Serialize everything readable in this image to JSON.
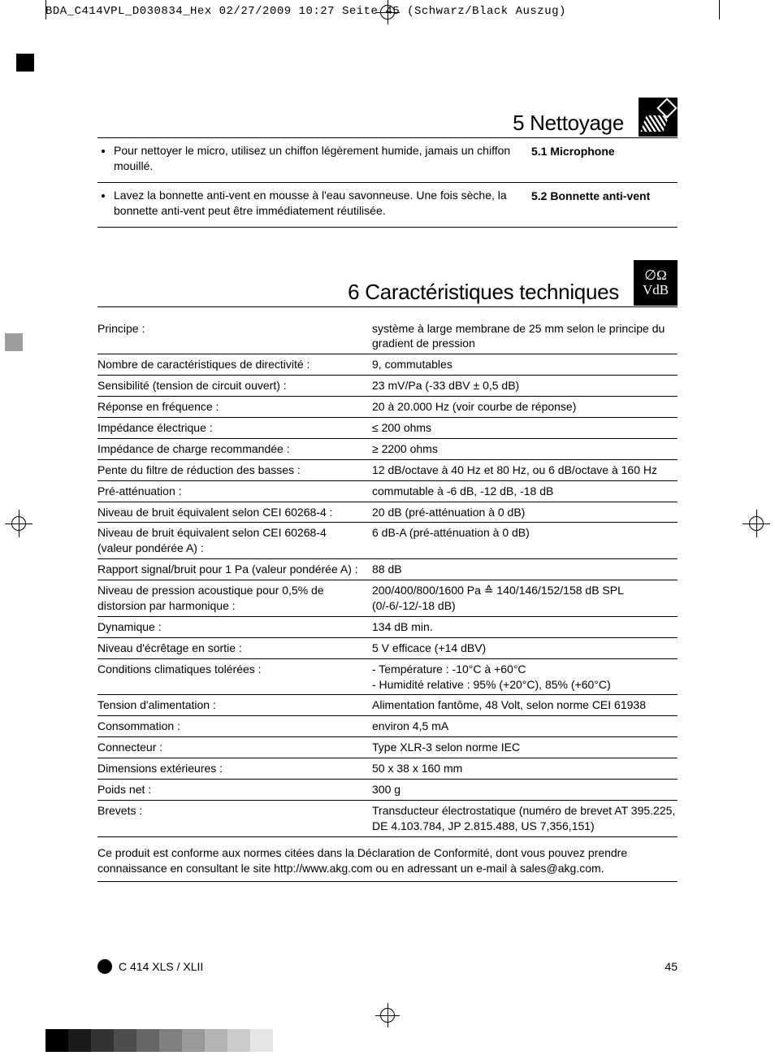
{
  "print_header": "BDA_C414VPL_D030834_Hex  02/27/2009  10:27  Seite 45    (Schwarz/Black Auszug)",
  "section_cleaning": {
    "title": "5 Nettoyage",
    "items": [
      {
        "text": "Pour nettoyer le micro, utilisez un chiffon légèrement humide, jamais un chiffon mouillé.",
        "side": "5.1 Microphone"
      },
      {
        "text": "Lavez la bonnette anti-vent en mousse à l'eau savonneuse. Une fois sèche, la bonnette anti-vent peut être immédiatement réutilisée.",
        "side": "5.2 Bonnette anti-vent"
      }
    ]
  },
  "section_specs": {
    "title": "6 Caractéristiques techniques",
    "icon_top": "∅Ω",
    "icon_bot": "VdB",
    "rows": [
      {
        "k": "Principe :",
        "v": "système à large membrane de 25 mm selon le principe du gradient de pression"
      },
      {
        "k": "Nombre de caractéristiques de directivité :",
        "v": "9, commutables"
      },
      {
        "k": "Sensibilité (tension de circuit ouvert) :",
        "v": "23 mV/Pa (-33 dBV ± 0,5 dB)"
      },
      {
        "k": "Réponse en fréquence :",
        "v": "20 à 20.000 Hz (voir courbe de réponse)"
      },
      {
        "k": "Impédance électrique :",
        "v": "≤ 200 ohms"
      },
      {
        "k": "Impédance de charge recommandée :",
        "v": "≥ 2200 ohms"
      },
      {
        "k": "Pente du filtre de réduction des basses :",
        "v": "12 dB/octave à 40 Hz et 80 Hz, ou 6 dB/octave à 160 Hz"
      },
      {
        "k": "Pré-atténuation :",
        "v": "commutable à -6 dB, -12 dB, -18 dB"
      },
      {
        "k": "Niveau de bruit équivalent selon CEI 60268-4 :",
        "v": "20 dB (pré-atténuation à 0 dB)"
      },
      {
        "k": "Niveau de bruit équivalent selon CEI 60268-4 (valeur pondérée A) :",
        "v": "6 dB-A (pré-atténuation à 0 dB)"
      },
      {
        "k": "Rapport signal/bruit pour 1 Pa (valeur pondérée A) :",
        "v": "88 dB"
      },
      {
        "k": "Niveau de pression acoustique pour 0,5% de distorsion par harmonique :",
        "v": "200/400/800/1600 Pa ≙ 140/146/152/158 dB SPL (0/-6/-12/-18 dB)"
      },
      {
        "k": "Dynamique :",
        "v": "134 dB min."
      },
      {
        "k": "Niveau d'écrêtage en sortie :",
        "v": "5 V efficace (+14 dBV)"
      },
      {
        "k": "Conditions climatiques tolérées :",
        "v": "- Température : -10°C à +60°C\n- Humidité relative : 95% (+20°C), 85% (+60°C)"
      },
      {
        "k": "Tension d'alimentation :",
        "v": "Alimentation fantôme, 48 Volt, selon norme CEI 61938"
      },
      {
        "k": "Consommation :",
        "v": "environ 4,5 mA"
      },
      {
        "k": "Connecteur :",
        "v": "Type XLR-3 selon norme IEC"
      },
      {
        "k": "Dimensions extérieures :",
        "v": "50 x 38 x 160 mm"
      },
      {
        "k": "Poids net :",
        "v": "300 g"
      },
      {
        "k": "Brevets :",
        "v": "Transducteur électrostatique (numéro de brevet AT 395.225, DE 4.103.784, JP 2.815.488, US 7,356,151)"
      }
    ],
    "footnote": "Ce produit est conforme aux normes citées dans la Déclaration de Conformité, dont vous pouvez prendre connaissance en consultant le site http://www.akg.com ou en adressant un e-mail à sales@akg.com."
  },
  "footer": {
    "model": "C 414 XLS / XLII",
    "page": "45"
  },
  "colorbar": [
    "#000000",
    "#1a1a1a",
    "#333333",
    "#4d4d4d",
    "#666666",
    "#808080",
    "#999999",
    "#b3b3b3",
    "#cccccc",
    "#e6e6e6"
  ]
}
